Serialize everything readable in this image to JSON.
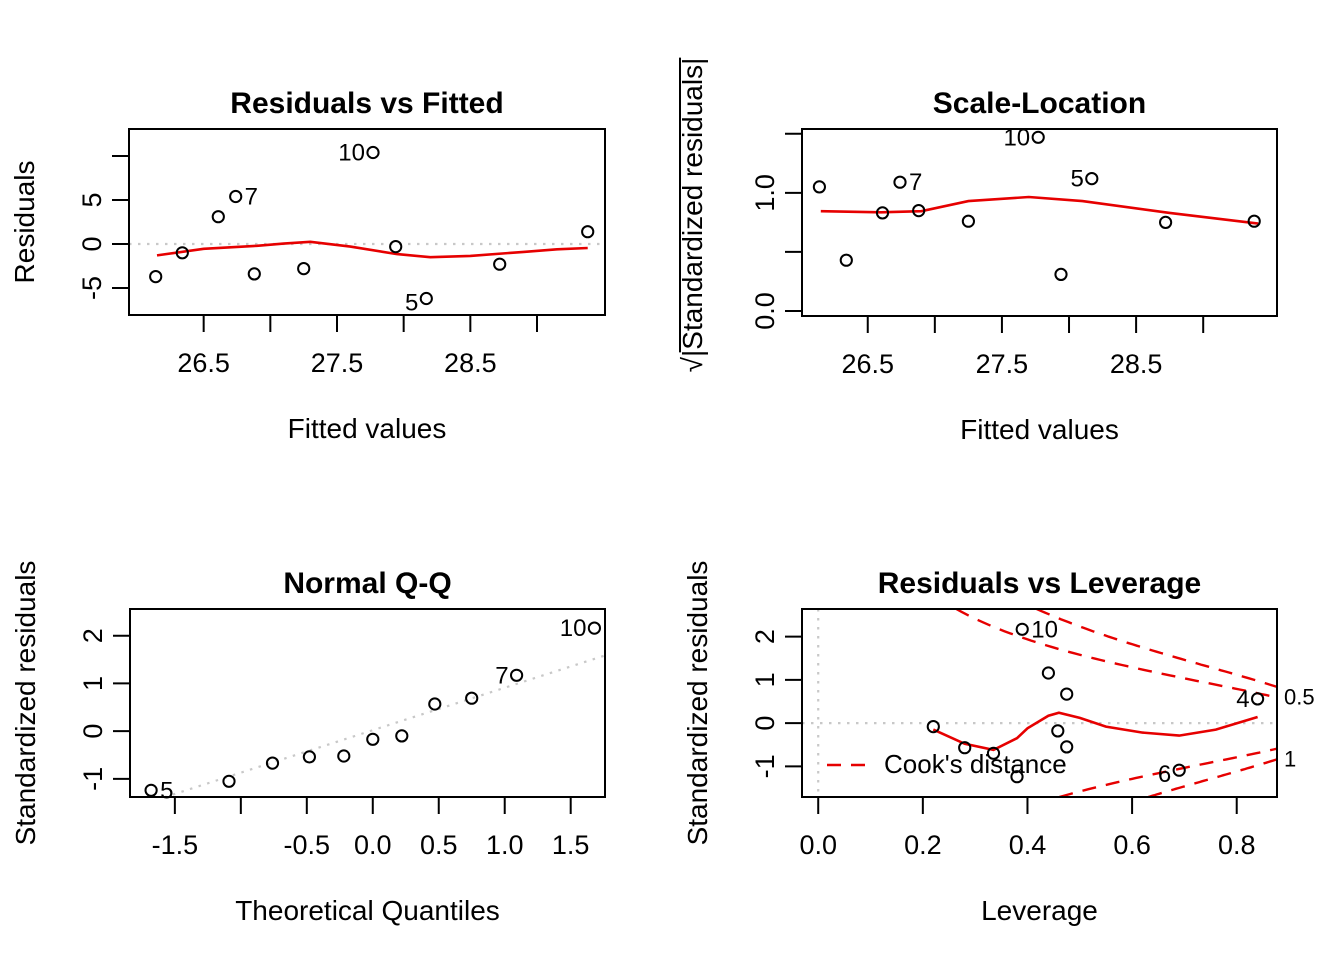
{
  "figure": {
    "background": "#ffffff"
  },
  "colors": {
    "accent_red": "#e60000",
    "reference_gray": "#c8c8c8",
    "foreground": "#000000"
  },
  "chart_data": {
    "type": "scatter",
    "layout_hint": "2x2 grid of R regression diagnostic panels, grid off, open-circle markers",
    "panels": [
      {
        "key": "residuals-vs-fitted",
        "title": "Residuals vs Fitted",
        "xlabel": "Fitted values",
        "ylabel": "Residuals",
        "xlim": [
          25.94,
          29.51
        ],
        "ylim": [
          -8.07,
          13.07
        ],
        "xticks": [
          {
            "v": 26.5,
            "label": "26.5"
          },
          {
            "v": 27.0
          },
          {
            "v": 27.5,
            "label": "27.5"
          },
          {
            "v": 28.0
          },
          {
            "v": 28.5,
            "label": "28.5"
          },
          {
            "v": 29.0
          }
        ],
        "yticks": [
          {
            "v": -5,
            "label": "-5"
          },
          {
            "v": 0,
            "label": "0"
          },
          {
            "v": 5,
            "label": "5"
          },
          {
            "v": 10
          }
        ],
        "ref_lines": [
          {
            "type": "h",
            "at": 0
          }
        ],
        "smoother": [
          [
            26.15,
            -1.3
          ],
          [
            26.5,
            -0.55
          ],
          [
            26.9,
            -0.2
          ],
          [
            27.1,
            0.05
          ],
          [
            27.3,
            0.25
          ],
          [
            27.6,
            -0.3
          ],
          [
            27.95,
            -1.15
          ],
          [
            28.2,
            -1.5
          ],
          [
            28.5,
            -1.35
          ],
          [
            28.9,
            -0.9
          ],
          [
            29.15,
            -0.6
          ],
          [
            29.38,
            -0.45
          ]
        ],
        "points": [
          {
            "x": 26.14,
            "y": -3.7
          },
          {
            "x": 26.34,
            "y": -1.0
          },
          {
            "x": 26.61,
            "y": 3.1
          },
          {
            "x": 26.74,
            "y": 5.4,
            "label": "7",
            "side": "right"
          },
          {
            "x": 26.88,
            "y": -3.4
          },
          {
            "x": 27.25,
            "y": -2.8
          },
          {
            "x": 27.77,
            "y": 10.4,
            "label": "10",
            "side": "left"
          },
          {
            "x": 27.94,
            "y": -0.3
          },
          {
            "x": 28.17,
            "y": -6.2,
            "label": "5",
            "side": "left-low"
          },
          {
            "x": 28.72,
            "y": -2.3
          },
          {
            "x": 29.38,
            "y": 1.4
          }
        ]
      },
      {
        "key": "scale-location",
        "title": "Scale-Location",
        "xlabel": "Fitted values",
        "ylabel": "√|Standardized residuals|",
        "xlim": [
          26.01,
          29.55
        ],
        "ylim": [
          -0.042,
          1.54
        ],
        "xticks": [
          {
            "v": 26.5,
            "label": "26.5"
          },
          {
            "v": 27.0
          },
          {
            "v": 27.5,
            "label": "27.5"
          },
          {
            "v": 28.0
          },
          {
            "v": 28.5,
            "label": "28.5"
          },
          {
            "v": 29.0
          }
        ],
        "yticks": [
          {
            "v": 0.0,
            "label": "0.0"
          },
          {
            "v": 0.5
          },
          {
            "v": 1.0,
            "label": "1.0"
          },
          {
            "v": 1.5
          }
        ],
        "ref_lines": [],
        "smoother": [
          [
            26.15,
            0.845
          ],
          [
            26.6,
            0.835
          ],
          [
            26.9,
            0.845
          ],
          [
            27.25,
            0.93
          ],
          [
            27.7,
            0.965
          ],
          [
            28.1,
            0.93
          ],
          [
            28.75,
            0.83
          ],
          [
            29.41,
            0.74
          ]
        ],
        "points": [
          {
            "x": 26.14,
            "y": 1.05
          },
          {
            "x": 26.34,
            "y": 0.43
          },
          {
            "x": 26.61,
            "y": 0.83
          },
          {
            "x": 26.74,
            "y": 1.09,
            "label": "7",
            "side": "right"
          },
          {
            "x": 26.88,
            "y": 0.85
          },
          {
            "x": 27.25,
            "y": 0.76
          },
          {
            "x": 27.77,
            "y": 1.47,
            "label": "10",
            "side": "left"
          },
          {
            "x": 27.94,
            "y": 0.31
          },
          {
            "x": 28.17,
            "y": 1.12,
            "label": "5",
            "side": "left"
          },
          {
            "x": 28.72,
            "y": 0.75
          },
          {
            "x": 29.38,
            "y": 0.76
          }
        ]
      },
      {
        "key": "normal-qq",
        "title": "Normal Q-Q",
        "xlabel": "Theoretical Quantiles",
        "ylabel": "Standardized residuals",
        "xlim": [
          -1.84,
          1.76
        ],
        "ylim": [
          -1.38,
          2.56
        ],
        "xticks": [
          {
            "v": -1.5,
            "label": "-1.5"
          },
          {
            "v": -1.0
          },
          {
            "v": -0.5,
            "label": "-0.5"
          },
          {
            "v": 0.0,
            "label": "0.0"
          },
          {
            "v": 0.5,
            "label": "0.5"
          },
          {
            "v": 1.0,
            "label": "1.0"
          },
          {
            "v": 1.5,
            "label": "1.5"
          }
        ],
        "yticks": [
          {
            "v": -1,
            "label": "-1"
          },
          {
            "v": 0,
            "label": "0"
          },
          {
            "v": 1,
            "label": "1"
          },
          {
            "v": 2,
            "label": "2"
          }
        ],
        "ref_lines": [
          {
            "type": "ab",
            "intercept": 0.02,
            "slope": 0.89
          }
        ],
        "points": [
          {
            "x": -1.68,
            "y": -1.24,
            "label": "5",
            "side": "right"
          },
          {
            "x": -1.09,
            "y": -1.05
          },
          {
            "x": -0.76,
            "y": -0.67
          },
          {
            "x": -0.48,
            "y": -0.54
          },
          {
            "x": -0.22,
            "y": -0.52
          },
          {
            "x": 0.0,
            "y": -0.17
          },
          {
            "x": 0.22,
            "y": -0.1
          },
          {
            "x": 0.47,
            "y": 0.57
          },
          {
            "x": 0.75,
            "y": 0.69
          },
          {
            "x": 1.09,
            "y": 1.17,
            "label": "7",
            "side": "left"
          },
          {
            "x": 1.68,
            "y": 2.16,
            "label": "10",
            "side": "left"
          }
        ]
      },
      {
        "key": "residuals-vs-leverage",
        "title": "Residuals vs Leverage",
        "xlabel": "Leverage",
        "ylabel": "Standardized residuals",
        "xlim": [
          -0.031,
          0.877
        ],
        "ylim": [
          -1.71,
          2.64
        ],
        "xticks": [
          {
            "v": 0.0,
            "label": "0.0"
          },
          {
            "v": 0.2,
            "label": "0.2"
          },
          {
            "v": 0.4,
            "label": "0.4"
          },
          {
            "v": 0.6,
            "label": "0.6"
          },
          {
            "v": 0.8,
            "label": "0.8"
          }
        ],
        "yticks": [
          {
            "v": -1,
            "label": "-1"
          },
          {
            "v": 0,
            "label": "0"
          },
          {
            "v": 1,
            "label": "1"
          },
          {
            "v": 2,
            "label": "2"
          }
        ],
        "ref_lines": [
          {
            "type": "h",
            "at": 0
          },
          {
            "type": "v",
            "at": 0
          }
        ],
        "smoother": [
          [
            0.22,
            -0.15
          ],
          [
            0.28,
            -0.48
          ],
          [
            0.335,
            -0.62
          ],
          [
            0.38,
            -0.35
          ],
          [
            0.4,
            -0.12
          ],
          [
            0.44,
            0.17
          ],
          [
            0.46,
            0.24
          ],
          [
            0.5,
            0.12
          ],
          [
            0.55,
            -0.08
          ],
          [
            0.62,
            -0.22
          ],
          [
            0.69,
            -0.29
          ],
          [
            0.76,
            -0.15
          ],
          [
            0.84,
            0.14
          ]
        ],
        "points": [
          {
            "x": 0.22,
            "y": -0.08
          },
          {
            "x": 0.28,
            "y": -0.57
          },
          {
            "x": 0.335,
            "y": -0.7
          },
          {
            "x": 0.38,
            "y": -1.24
          },
          {
            "x": 0.39,
            "y": 2.17,
            "label": "10",
            "side": "right"
          },
          {
            "x": 0.44,
            "y": 1.16
          },
          {
            "x": 0.458,
            "y": -0.18
          },
          {
            "x": 0.475,
            "y": 0.67
          },
          {
            "x": 0.475,
            "y": -0.55
          },
          {
            "x": 0.69,
            "y": -1.09,
            "label": "6",
            "side": "left-low"
          },
          {
            "x": 0.84,
            "y": 0.56,
            "label": "4",
            "side": "left"
          }
        ],
        "cooks_distance": {
          "legend_label": "Cook's distance",
          "levels": [
            {
              "c": 2.5,
              "label": "0.5",
              "label_side": "upper"
            },
            {
              "c": 5.0,
              "label": "1",
              "label_side": "lower"
            }
          ]
        }
      }
    ]
  }
}
